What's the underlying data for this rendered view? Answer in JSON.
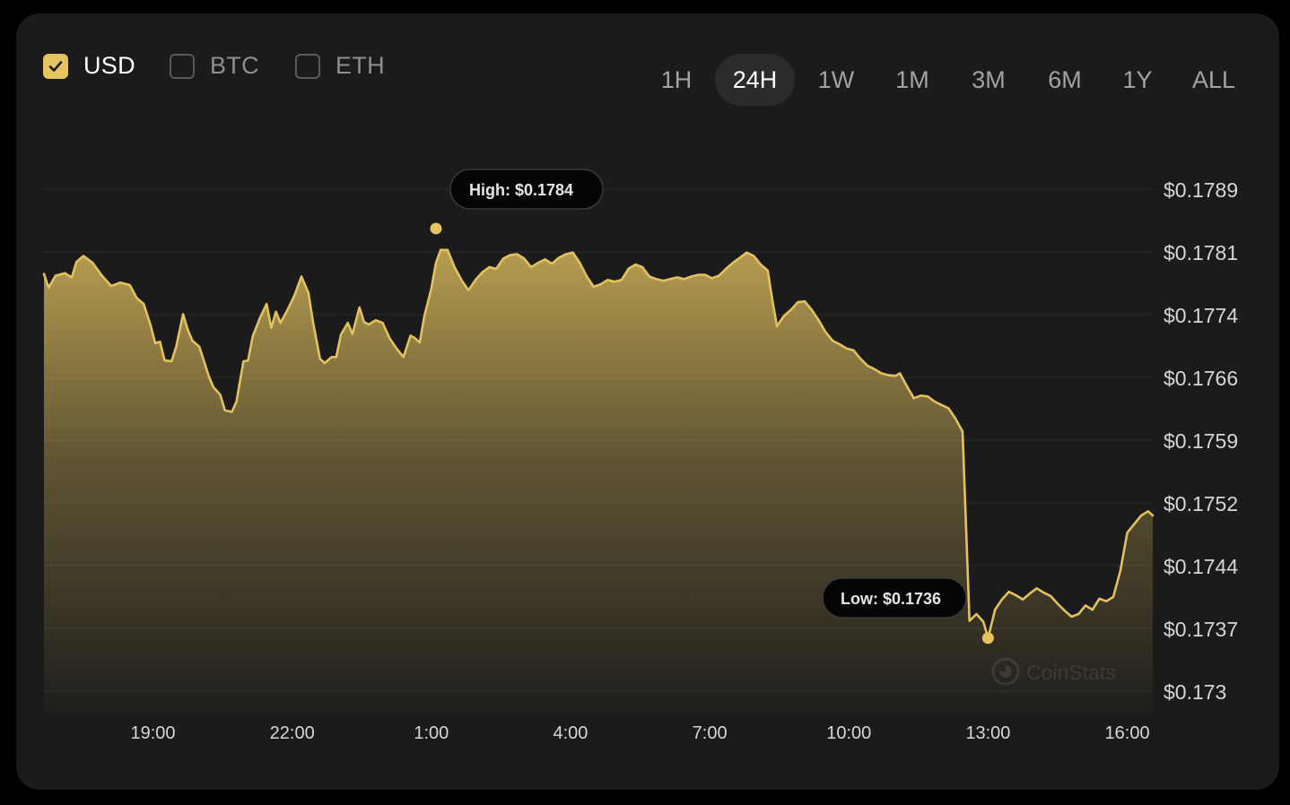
{
  "currencies": [
    {
      "label": "USD",
      "checked": true
    },
    {
      "label": "BTC",
      "checked": false
    },
    {
      "label": "ETH",
      "checked": false
    }
  ],
  "ranges": [
    "1H",
    "24H",
    "1W",
    "1M",
    "3M",
    "6M",
    "1Y",
    "ALL"
  ],
  "active_range": "24H",
  "colors": {
    "background": "#1b1b1b",
    "accent": "#e5c35f",
    "line": "#e2c15f",
    "grid": "#262626",
    "active_pill": "#2b2b2b"
  },
  "chart_data": {
    "type": "area",
    "x_ticks": [
      "19:00",
      "22:00",
      "1:00",
      "4:00",
      "7:00",
      "10:00",
      "13:00",
      "16:00"
    ],
    "y_ticks": [
      "$0.1789",
      "$0.1781",
      "$0.1774",
      "$0.1766",
      "$0.1759",
      "$0.1752",
      "$0.1744",
      "$0.1737",
      "$0.173"
    ],
    "x_range_hours": [
      16.65,
      40.55
    ],
    "y_range": [
      0.173,
      0.17886
    ],
    "grid": true,
    "high_label": "High: $0.1784",
    "low_label": "Low: $0.1736",
    "high": {
      "x": 25.1,
      "y": 0.1784
    },
    "low": {
      "x": 37.0,
      "y": 0.17362
    },
    "watermark": "CoinStats",
    "series": [
      {
        "points": [
          [
            16.65,
            0.17787
          ],
          [
            16.75,
            0.17771
          ],
          [
            16.9,
            0.17785
          ],
          [
            17.1,
            0.17788
          ],
          [
            17.25,
            0.17783
          ],
          [
            17.35,
            0.17801
          ],
          [
            17.5,
            0.17808
          ],
          [
            17.7,
            0.178
          ],
          [
            17.9,
            0.17785
          ],
          [
            18.1,
            0.17773
          ],
          [
            18.3,
            0.17777
          ],
          [
            18.5,
            0.17774
          ],
          [
            18.65,
            0.17759
          ],
          [
            18.8,
            0.17752
          ],
          [
            18.95,
            0.17727
          ],
          [
            19.05,
            0.17706
          ],
          [
            19.15,
            0.17708
          ],
          [
            19.25,
            0.17686
          ],
          [
            19.4,
            0.17685
          ],
          [
            19.5,
            0.17702
          ],
          [
            19.65,
            0.1774
          ],
          [
            19.75,
            0.17722
          ],
          [
            19.85,
            0.17709
          ],
          [
            20.0,
            0.17702
          ],
          [
            20.2,
            0.17668
          ],
          [
            20.3,
            0.17655
          ],
          [
            20.45,
            0.17646
          ],
          [
            20.55,
            0.17628
          ],
          [
            20.7,
            0.17626
          ],
          [
            20.8,
            0.17638
          ],
          [
            20.95,
            0.17685
          ],
          [
            21.05,
            0.17686
          ],
          [
            21.15,
            0.17714
          ],
          [
            21.3,
            0.17735
          ],
          [
            21.45,
            0.17752
          ],
          [
            21.55,
            0.17724
          ],
          [
            21.65,
            0.17743
          ],
          [
            21.75,
            0.1773
          ],
          [
            21.9,
            0.17745
          ],
          [
            22.05,
            0.17762
          ],
          [
            22.2,
            0.17784
          ],
          [
            22.35,
            0.17765
          ],
          [
            22.45,
            0.17731
          ],
          [
            22.6,
            0.17688
          ],
          [
            22.7,
            0.17683
          ],
          [
            22.85,
            0.1769
          ],
          [
            22.95,
            0.1769
          ],
          [
            23.05,
            0.17716
          ],
          [
            23.2,
            0.1773
          ],
          [
            23.3,
            0.17717
          ],
          [
            23.45,
            0.17748
          ],
          [
            23.55,
            0.17731
          ],
          [
            23.65,
            0.17728
          ],
          [
            23.8,
            0.17733
          ],
          [
            23.95,
            0.1773
          ],
          [
            24.1,
            0.17712
          ],
          [
            24.25,
            0.177
          ],
          [
            24.4,
            0.1769
          ],
          [
            24.55,
            0.17715
          ],
          [
            24.65,
            0.17712
          ],
          [
            24.75,
            0.17707
          ],
          [
            24.85,
            0.17738
          ],
          [
            25.0,
            0.1777
          ],
          [
            25.1,
            0.178
          ],
          [
            25.2,
            0.17815
          ],
          [
            25.35,
            0.17815
          ],
          [
            25.5,
            0.17795
          ],
          [
            25.65,
            0.1778
          ],
          [
            25.8,
            0.17768
          ],
          [
            25.95,
            0.1778
          ],
          [
            26.1,
            0.17789
          ],
          [
            26.25,
            0.17795
          ],
          [
            26.4,
            0.17793
          ],
          [
            26.55,
            0.17805
          ],
          [
            26.7,
            0.17809
          ],
          [
            26.85,
            0.1781
          ],
          [
            27.0,
            0.17805
          ],
          [
            27.15,
            0.17795
          ],
          [
            27.3,
            0.178
          ],
          [
            27.45,
            0.17804
          ],
          [
            27.6,
            0.17799
          ],
          [
            27.75,
            0.17806
          ],
          [
            27.9,
            0.1781
          ],
          [
            28.05,
            0.17812
          ],
          [
            28.2,
            0.178
          ],
          [
            28.35,
            0.17784
          ],
          [
            28.5,
            0.17772
          ],
          [
            28.65,
            0.17775
          ],
          [
            28.8,
            0.1778
          ],
          [
            28.95,
            0.17778
          ],
          [
            29.1,
            0.1778
          ],
          [
            29.25,
            0.17793
          ],
          [
            29.4,
            0.17798
          ],
          [
            29.55,
            0.17795
          ],
          [
            29.7,
            0.17784
          ],
          [
            29.85,
            0.17781
          ],
          [
            30.0,
            0.17779
          ],
          [
            30.15,
            0.17781
          ],
          [
            30.3,
            0.17783
          ],
          [
            30.45,
            0.17781
          ],
          [
            30.6,
            0.17784
          ],
          [
            30.75,
            0.17786
          ],
          [
            30.9,
            0.17786
          ],
          [
            31.05,
            0.17782
          ],
          [
            31.2,
            0.17785
          ],
          [
            31.35,
            0.17793
          ],
          [
            31.5,
            0.178
          ],
          [
            31.65,
            0.17806
          ],
          [
            31.8,
            0.17812
          ],
          [
            31.95,
            0.17808
          ],
          [
            32.1,
            0.17798
          ],
          [
            32.25,
            0.17791
          ],
          [
            32.35,
            0.17757
          ],
          [
            32.45,
            0.17726
          ],
          [
            32.6,
            0.17738
          ],
          [
            32.75,
            0.17745
          ],
          [
            32.9,
            0.17754
          ],
          [
            33.05,
            0.17755
          ],
          [
            33.2,
            0.17745
          ],
          [
            33.35,
            0.17733
          ],
          [
            33.5,
            0.17719
          ],
          [
            33.65,
            0.17709
          ],
          [
            33.8,
            0.17705
          ],
          [
            33.95,
            0.177
          ],
          [
            34.1,
            0.17698
          ],
          [
            34.25,
            0.17688
          ],
          [
            34.4,
            0.1768
          ],
          [
            34.55,
            0.17676
          ],
          [
            34.7,
            0.17671
          ],
          [
            34.85,
            0.17669
          ],
          [
            35.0,
            0.17668
          ],
          [
            35.1,
            0.17671
          ],
          [
            35.25,
            0.17656
          ],
          [
            35.4,
            0.17642
          ],
          [
            35.55,
            0.17645
          ],
          [
            35.7,
            0.17644
          ],
          [
            35.85,
            0.17638
          ],
          [
            36.0,
            0.17634
          ],
          [
            36.15,
            0.1763
          ],
          [
            36.3,
            0.17618
          ],
          [
            36.45,
            0.17603
          ],
          [
            36.6,
            0.17382
          ],
          [
            36.75,
            0.1739
          ],
          [
            36.9,
            0.17381
          ],
          [
            37.0,
            0.17362
          ],
          [
            37.15,
            0.17395
          ],
          [
            37.3,
            0.17407
          ],
          [
            37.45,
            0.17416
          ],
          [
            37.6,
            0.17412
          ],
          [
            37.75,
            0.17407
          ],
          [
            37.9,
            0.17414
          ],
          [
            38.05,
            0.1742
          ],
          [
            38.2,
            0.17415
          ],
          [
            38.35,
            0.17411
          ],
          [
            38.5,
            0.17402
          ],
          [
            38.65,
            0.17394
          ],
          [
            38.8,
            0.17387
          ],
          [
            38.95,
            0.1739
          ],
          [
            39.1,
            0.174
          ],
          [
            39.25,
            0.17395
          ],
          [
            39.4,
            0.17408
          ],
          [
            39.55,
            0.17405
          ],
          [
            39.7,
            0.1741
          ],
          [
            39.85,
            0.1744
          ],
          [
            40.0,
            0.17485
          ],
          [
            40.15,
            0.17495
          ],
          [
            40.3,
            0.17505
          ],
          [
            40.45,
            0.1751
          ],
          [
            40.55,
            0.17505
          ]
        ]
      }
    ]
  }
}
